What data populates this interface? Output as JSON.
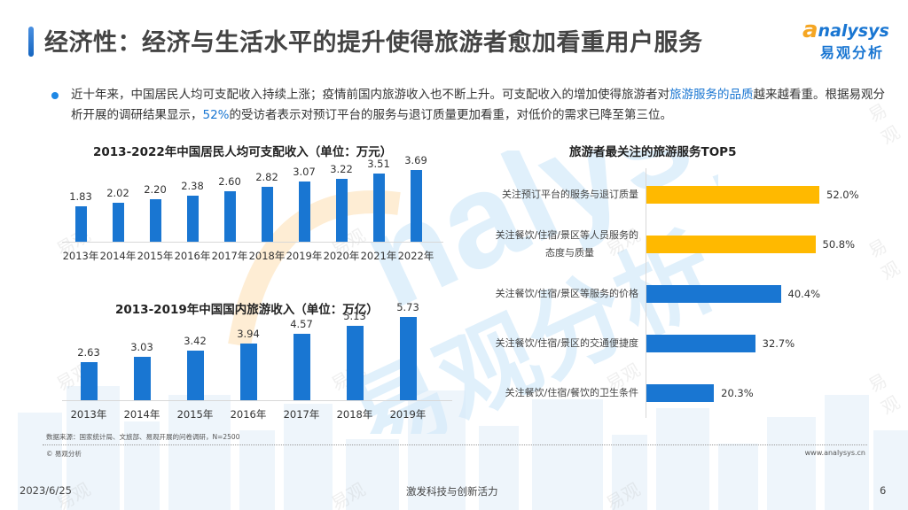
{
  "slide": {
    "title": "经济性：经济与生活水平的提升使得旅游者愈加看重用户服务",
    "logo": {
      "en_first": "a",
      "en_rest": "nalysys",
      "cn": "易观分析"
    },
    "paragraph": {
      "part1": "近十年来，中国居民人均可支配收入持续上涨；疫情前国内旅游收入也不断上升。可支配收入的增加使得旅游者对",
      "highlight1": "旅游服务的品质",
      "part2": "越来越看重。根据易观分析开展的调研结果显示，",
      "highlight2": "52%",
      "part3": "的受访者表示对预订平台的服务与退订质量更加看重，对低价的需求已降至第三位。"
    },
    "source": "数据来源：国家统计局、文旅部、易观开展的问卷调研，N=2500",
    "copyright": "© 易观分析",
    "website": "www.analysys.cn",
    "footer": {
      "date": "2023/6/25",
      "slogan": "激发科技与创新活力",
      "page": "6"
    },
    "watermark": "易观",
    "colors": {
      "blue": "#1976d2",
      "gold": "#ffb900",
      "accent_orange": "#f5a623"
    }
  },
  "chart_data": [
    {
      "type": "bar",
      "title": "2013-2022年中国居民人均可支配收入（单位：万元）",
      "categories": [
        "2013年",
        "2014年",
        "2015年",
        "2016年",
        "2017年",
        "2018年",
        "2019年",
        "2020年",
        "2021年",
        "2022年"
      ],
      "values": [
        1.83,
        2.02,
        2.2,
        2.38,
        2.6,
        2.82,
        3.07,
        3.22,
        3.51,
        3.69
      ],
      "labels": [
        "1.83",
        "2.02",
        "2.20",
        "2.38",
        "2.60",
        "2.82",
        "3.07",
        "3.22",
        "3.51",
        "3.69"
      ],
      "xlabel": "",
      "ylabel": "万元",
      "ylim": [
        0,
        4
      ],
      "grid": false,
      "color": "#1976d2"
    },
    {
      "type": "bar",
      "title": "2013-2019年中国国内旅游收入（单位：万亿）",
      "categories": [
        "2013年",
        "2014年",
        "2015年",
        "2016年",
        "2017年",
        "2018年",
        "2019年"
      ],
      "values": [
        2.63,
        3.03,
        3.42,
        3.94,
        4.57,
        5.13,
        5.73
      ],
      "labels": [
        "2.63",
        "3.03",
        "3.42",
        "3.94",
        "4.57",
        "5.13",
        "5.73"
      ],
      "xlabel": "",
      "ylabel": "万亿",
      "ylim": [
        0,
        6
      ],
      "grid": false,
      "color": "#1976d2"
    },
    {
      "type": "bar",
      "orientation": "horizontal",
      "title": "旅游者最关注的旅游服务TOP5",
      "categories": [
        "关注预订平台的服务与退订质量",
        "关注餐饮/住宿/景区等人员服务的态度与质量",
        "关注餐饮/住宿/景区等服务的价格",
        "关注餐饮/住宿/景区的交通便捷度",
        "关注餐饮/住宿/餐饮的卫生条件"
      ],
      "category_lines": [
        [
          "关注预订平台的服务与退订质量"
        ],
        [
          "关注餐饮/住宿/景区等人员服务的",
          "态度与质量"
        ],
        [
          "关注餐饮/住宿/景区等服务的价格"
        ],
        [
          "关注餐饮/住宿/景区的交通便捷度"
        ],
        [
          "关注餐饮/住宿/餐饮的卫生条件"
        ]
      ],
      "values": [
        52.0,
        50.8,
        40.4,
        32.7,
        20.3
      ],
      "labels": [
        "52.0%",
        "50.8%",
        "40.4%",
        "32.7%",
        "20.3%"
      ],
      "colors": [
        "#ffb900",
        "#ffb900",
        "#1976d2",
        "#1976d2",
        "#1976d2"
      ],
      "unit": "%",
      "xlim": [
        0,
        60
      ],
      "grid": false
    }
  ]
}
